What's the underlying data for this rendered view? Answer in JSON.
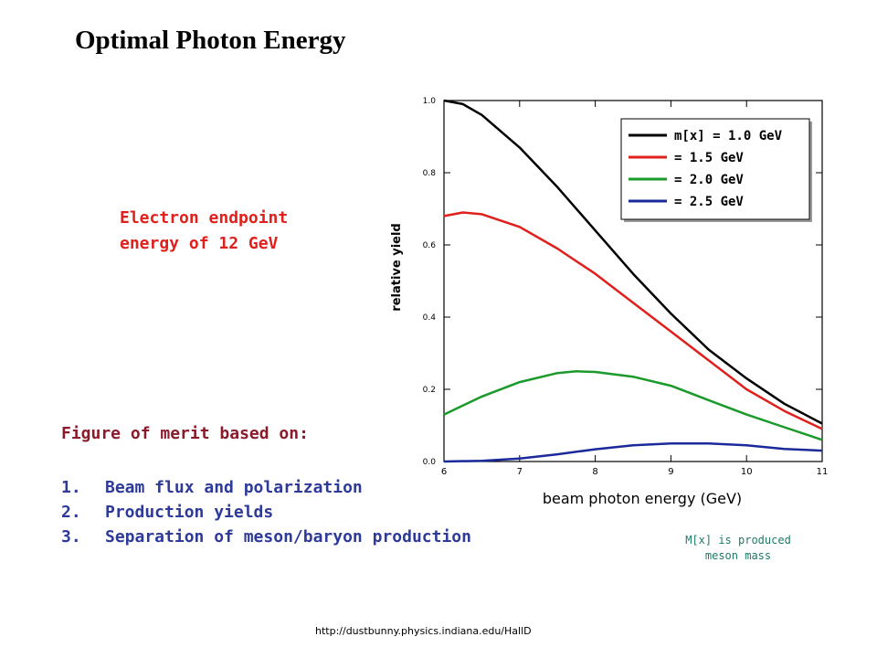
{
  "slide": {
    "title": "Optimal Photon Energy",
    "endpoint_line1": "Electron endpoint",
    "endpoint_line2": "energy of 12 GeV",
    "merit_heading": "Figure of merit based on:",
    "merit_items": [
      {
        "num": "1.",
        "text": "Beam flux and polarization"
      },
      {
        "num": "2.",
        "text": "Production yields"
      },
      {
        "num": "3.",
        "text": "Separation of meson/baryon production"
      }
    ],
    "note_line1": "M[x] is produced",
    "note_line2": "meson mass",
    "url": "http://dustbunny.physics.indiana.edu/HallD"
  },
  "chart_data": {
    "type": "line",
    "xlabel": "beam photon energy (GeV)",
    "ylabel": "relative yield",
    "xlim": [
      6,
      11
    ],
    "ylim": [
      0,
      1.0
    ],
    "x_ticks": [
      "6",
      "7",
      "8",
      "9",
      "10",
      "11"
    ],
    "y_ticks": [
      "0.0",
      "0.2",
      "0.4",
      "0.6",
      "0.8",
      "1.0"
    ],
    "legend_position": "top-right",
    "series": [
      {
        "name": "m[x] = 1.0 GeV",
        "color": "#000000",
        "x": [
          6.0,
          6.25,
          6.5,
          7.0,
          7.5,
          8.0,
          8.5,
          9.0,
          9.5,
          10.0,
          10.5,
          11.0
        ],
        "y": [
          1.0,
          0.99,
          0.96,
          0.87,
          0.76,
          0.64,
          0.52,
          0.41,
          0.31,
          0.23,
          0.16,
          0.105
        ]
      },
      {
        "name": "= 1.5 GeV",
        "color": "#e0201c",
        "x": [
          6.0,
          6.25,
          6.5,
          7.0,
          7.5,
          8.0,
          8.5,
          9.0,
          9.5,
          10.0,
          10.5,
          11.0
        ],
        "y": [
          0.68,
          0.69,
          0.685,
          0.65,
          0.59,
          0.52,
          0.44,
          0.36,
          0.28,
          0.2,
          0.14,
          0.09
        ]
      },
      {
        "name": "= 2.0 GeV",
        "color": "#1a9a2a",
        "x": [
          6.0,
          6.5,
          7.0,
          7.5,
          7.75,
          8.0,
          8.5,
          9.0,
          9.5,
          10.0,
          10.5,
          11.0
        ],
        "y": [
          0.13,
          0.18,
          0.22,
          0.245,
          0.25,
          0.248,
          0.235,
          0.21,
          0.17,
          0.13,
          0.095,
          0.06
        ]
      },
      {
        "name": "= 2.5 GeV",
        "color": "#1a2a9a",
        "x": [
          6.0,
          6.5,
          7.0,
          7.5,
          8.0,
          8.5,
          9.0,
          9.5,
          10.0,
          10.5,
          11.0
        ],
        "y": [
          0.0,
          0.002,
          0.008,
          0.02,
          0.034,
          0.045,
          0.05,
          0.05,
          0.045,
          0.035,
          0.03
        ]
      }
    ]
  }
}
